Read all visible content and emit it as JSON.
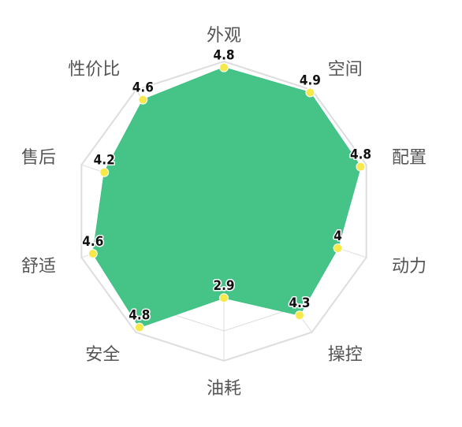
{
  "chart_data": {
    "type": "radar",
    "max": 5,
    "grid_levels": 5,
    "series_color": "#3cc182",
    "point_color": "#f8e94a",
    "grid_color": "#dddddd",
    "axes": [
      {
        "label": "外观",
        "value": 4.8,
        "value_text": "4.8"
      },
      {
        "label": "空间",
        "value": 4.9,
        "value_text": "4.9"
      },
      {
        "label": "配置",
        "value": 4.8,
        "value_text": "4.8"
      },
      {
        "label": "动力",
        "value": 4.0,
        "value_text": "4"
      },
      {
        "label": "操控",
        "value": 4.3,
        "value_text": "4.3"
      },
      {
        "label": "油耗",
        "value": 2.9,
        "value_text": "2.9"
      },
      {
        "label": "安全",
        "value": 4.8,
        "value_text": "4.8"
      },
      {
        "label": "舒适",
        "value": 4.6,
        "value_text": "4.6"
      },
      {
        "label": "售后",
        "value": 4.2,
        "value_text": "4.2"
      },
      {
        "label": "性价比",
        "value": 4.6,
        "value_text": "4.6"
      }
    ]
  }
}
